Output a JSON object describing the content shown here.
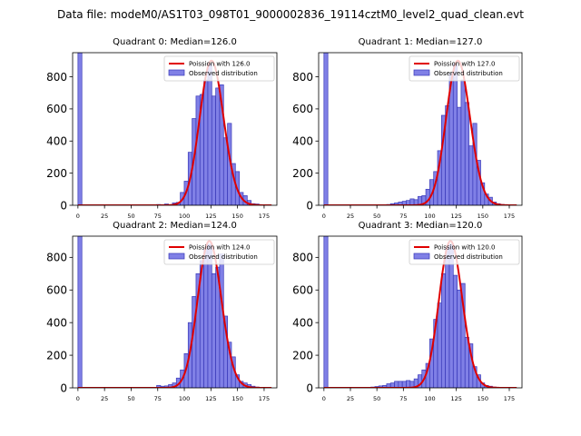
{
  "figure": {
    "suptitle": "Data file: modeM0/AS1T03_098T01_9000002836_19114cztM0_level2_quad_clean.evt",
    "colors": {
      "bar_fill": "#8080e6",
      "bar_edge": "#3838b8",
      "poisson_line": "#e00000",
      "axes": "#000000",
      "background": "#ffffff"
    }
  },
  "chart_data": [
    {
      "type": "bar",
      "title": "Quadrant 0: Median=126.0",
      "xlabel": "",
      "ylabel": "",
      "xlim": [
        -5,
        187
      ],
      "ylim": [
        0,
        950
      ],
      "xticks": [
        0,
        25,
        50,
        75,
        100,
        125,
        150,
        175
      ],
      "yticks": [
        0,
        200,
        400,
        600,
        800
      ],
      "bin_width": 3.7,
      "bin_starts": [
        0,
        3.7,
        7.4,
        11.1,
        14.8,
        18.5,
        22.2,
        25.9,
        29.6,
        33.3,
        37,
        40.7,
        44.4,
        48.1,
        51.8,
        55.5,
        59.2,
        62.9,
        66.6,
        70.3,
        74,
        77.7,
        81.4,
        85.1,
        88.8,
        92.5,
        96.2,
        99.9,
        103.6,
        107.3,
        111,
        114.7,
        118.4,
        122.1,
        125.8,
        129.5,
        133.2,
        136.9,
        140.6,
        144.3,
        148,
        151.7,
        155.4,
        159.1,
        162.8,
        166.5,
        170.2,
        173.9,
        177.6
      ],
      "counts": [
        950,
        0,
        0,
        0,
        0,
        0,
        0,
        0,
        0,
        0,
        0,
        0,
        0,
        0,
        0,
        0,
        0,
        0,
        0,
        0,
        5,
        0,
        8,
        0,
        15,
        18,
        80,
        150,
        330,
        540,
        680,
        690,
        780,
        880,
        680,
        730,
        750,
        420,
        510,
        260,
        210,
        80,
        60,
        30,
        10,
        8,
        0,
        0,
        0
      ],
      "poisson": {
        "label": "Poission with 126.0",
        "mean": 126.0
      },
      "legend": {
        "line_label": "Poission with 126.0",
        "bar_label": "Observed distribution",
        "loc": "upper right"
      }
    },
    {
      "type": "bar",
      "title": "Quadrant 1: Median=127.0",
      "xlabel": "",
      "ylabel": "",
      "xlim": [
        -5,
        187
      ],
      "ylim": [
        0,
        950
      ],
      "xticks": [
        0,
        25,
        50,
        75,
        100,
        125,
        150,
        175
      ],
      "yticks": [
        0,
        200,
        400,
        600,
        800
      ],
      "bin_width": 3.7,
      "bin_starts": [
        0,
        3.7,
        7.4,
        11.1,
        14.8,
        18.5,
        22.2,
        25.9,
        29.6,
        33.3,
        37,
        40.7,
        44.4,
        48.1,
        51.8,
        55.5,
        59.2,
        62.9,
        66.6,
        70.3,
        74,
        77.7,
        81.4,
        85.1,
        88.8,
        92.5,
        96.2,
        99.9,
        103.6,
        107.3,
        111,
        114.7,
        118.4,
        122.1,
        125.8,
        129.5,
        133.2,
        136.9,
        140.6,
        144.3,
        148,
        151.7,
        155.4,
        159.1,
        162.8,
        166.5,
        170.2,
        173.9,
        177.6
      ],
      "counts": [
        950,
        0,
        0,
        0,
        0,
        0,
        0,
        0,
        0,
        0,
        0,
        0,
        0,
        0,
        0,
        0,
        5,
        10,
        15,
        20,
        25,
        30,
        40,
        35,
        55,
        60,
        100,
        160,
        210,
        340,
        560,
        620,
        820,
        880,
        610,
        780,
        640,
        370,
        510,
        280,
        140,
        70,
        50,
        20,
        10,
        5,
        0,
        0,
        0
      ],
      "poisson": {
        "label": "Poission with 127.0",
        "mean": 127.0
      },
      "legend": {
        "line_label": "Poission with 127.0",
        "bar_label": "Observed distribution",
        "loc": "upper right"
      }
    },
    {
      "type": "bar",
      "title": "Quadrant 2: Median=124.0",
      "xlabel": "",
      "ylabel": "",
      "xlim": [
        -5,
        187
      ],
      "ylim": [
        0,
        930
      ],
      "xticks": [
        0,
        25,
        50,
        75,
        100,
        125,
        150,
        175
      ],
      "yticks": [
        0,
        200,
        400,
        600,
        800
      ],
      "bin_width": 3.7,
      "bin_starts": [
        0,
        3.7,
        7.4,
        11.1,
        14.8,
        18.5,
        22.2,
        25.9,
        29.6,
        33.3,
        37,
        40.7,
        44.4,
        48.1,
        51.8,
        55.5,
        59.2,
        62.9,
        66.6,
        70.3,
        74,
        77.7,
        81.4,
        85.1,
        88.8,
        92.5,
        96.2,
        99.9,
        103.6,
        107.3,
        111,
        114.7,
        118.4,
        122.1,
        125.8,
        129.5,
        133.2,
        136.9,
        140.6,
        144.3,
        148,
        151.7,
        155.4,
        159.1,
        162.8,
        166.5,
        170.2,
        173.9,
        177.6
      ],
      "counts": [
        930,
        0,
        0,
        0,
        0,
        0,
        0,
        0,
        0,
        0,
        0,
        0,
        0,
        0,
        0,
        0,
        0,
        0,
        0,
        0,
        15,
        10,
        12,
        20,
        30,
        60,
        110,
        210,
        400,
        560,
        700,
        780,
        850,
        880,
        700,
        740,
        820,
        440,
        280,
        190,
        80,
        40,
        30,
        20,
        10,
        5,
        0,
        0,
        0
      ],
      "poisson": {
        "label": "Poission with 124.0",
        "mean": 124.0
      },
      "legend": {
        "line_label": "Poission with 124.0",
        "bar_label": "Observed distribution",
        "loc": "upper right"
      }
    },
    {
      "type": "bar",
      "title": "Quadrant 3: Median=120.0",
      "xlabel": "",
      "ylabel": "",
      "xlim": [
        -5,
        187
      ],
      "ylim": [
        0,
        930
      ],
      "xticks": [
        0,
        25,
        50,
        75,
        100,
        125,
        150,
        175
      ],
      "yticks": [
        0,
        200,
        400,
        600,
        800
      ],
      "bin_width": 3.7,
      "bin_starts": [
        0,
        3.7,
        7.4,
        11.1,
        14.8,
        18.5,
        22.2,
        25.9,
        29.6,
        33.3,
        37,
        40.7,
        44.4,
        48.1,
        51.8,
        55.5,
        59.2,
        62.9,
        66.6,
        70.3,
        74,
        77.7,
        81.4,
        85.1,
        88.8,
        92.5,
        96.2,
        99.9,
        103.6,
        107.3,
        111,
        114.7,
        118.4,
        122.1,
        125.8,
        129.5,
        133.2,
        136.9,
        140.6,
        144.3,
        148,
        151.7,
        155.4,
        159.1,
        162.8,
        166.5,
        170.2,
        173.9,
        177.6
      ],
      "counts": [
        930,
        0,
        0,
        0,
        0,
        0,
        0,
        0,
        0,
        0,
        0,
        0,
        5,
        8,
        12,
        15,
        25,
        30,
        40,
        40,
        40,
        45,
        40,
        55,
        80,
        110,
        150,
        300,
        420,
        520,
        700,
        860,
        880,
        690,
        600,
        640,
        310,
        270,
        130,
        80,
        30,
        15,
        10,
        5,
        0,
        0,
        0,
        0,
        0
      ],
      "poisson": {
        "label": "Poission with 120.0",
        "mean": 120.0
      },
      "legend": {
        "line_label": "Poission with 120.0",
        "bar_label": "Observed distribution",
        "loc": "upper right"
      }
    }
  ]
}
